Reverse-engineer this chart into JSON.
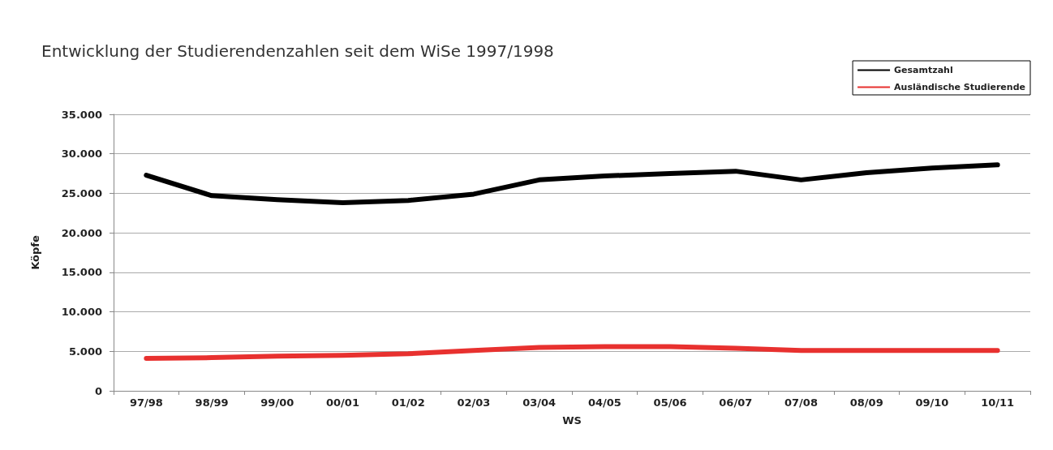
{
  "chart_data": {
    "type": "line",
    "title": "Entwicklung der Studierendenzahlen seit dem WiSe 1997/1998",
    "xlabel": "WS",
    "ylabel": "Köpfe",
    "categories": [
      "97/98",
      "98/99",
      "99/00",
      "00/01",
      "01/02",
      "02/03",
      "03/04",
      "04/05",
      "05/06",
      "06/07",
      "07/08",
      "08/09",
      "09/10",
      "10/11"
    ],
    "series": [
      {
        "name": "Gesamtzahl",
        "color": "#000000",
        "values": [
          27300,
          24700,
          24200,
          23800,
          24100,
          24900,
          26700,
          27200,
          27500,
          27800,
          26700,
          27600,
          28200,
          28600
        ]
      },
      {
        "name": "Ausländische Studierende",
        "color": "#e8312f",
        "values": [
          4100,
          4200,
          4400,
          4500,
          4700,
          5100,
          5500,
          5600,
          5600,
          5400,
          5100,
          5100,
          5100,
          5100
        ]
      }
    ],
    "ylim": [
      0,
      35000
    ],
    "yticks": [
      0,
      {
        "value": 5000,
        "label": "5.000"
      },
      {
        "value": 10000,
        "label": "10.000"
      },
      {
        "value": 15000,
        "label": "15.000"
      },
      {
        "value": 20000,
        "label": "20.000"
      },
      {
        "value": 25000,
        "label": "25.000"
      },
      {
        "value": 30000,
        "label": "30.000"
      },
      {
        "value": 35000,
        "label": "35.000"
      }
    ],
    "grid": "y",
    "legend": "top right",
    "marker": "none",
    "line_style": "solid"
  }
}
